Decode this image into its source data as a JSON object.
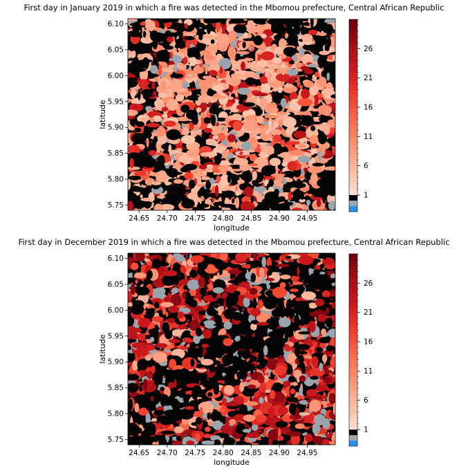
{
  "chart_data": [
    {
      "type": "heatmap",
      "title": "First day in January 2019 in which a fire was detected in the Mbomou prefecture, Central African Republic",
      "xlabel": "longitude",
      "ylabel": "latitude",
      "xticks": [
        24.65,
        24.7,
        24.75,
        24.8,
        24.85,
        24.9,
        24.95
      ],
      "yticks": [
        5.75,
        5.8,
        5.85,
        5.9,
        5.95,
        6.0,
        6.05,
        6.1
      ],
      "xlim": [
        24.63,
        25.0
      ],
      "ylim": [
        5.74,
        6.11
      ],
      "colorbar": {
        "ticks": [
          1,
          6,
          11,
          16,
          21,
          26
        ],
        "range": [
          1,
          31
        ],
        "extra_classes": [
          "#000000",
          "#9aa4ad",
          "#2a8ff0"
        ]
      },
      "colors": {
        "dominant": "#f4a582",
        "background": "#050505",
        "no_data": "#9aa4ad"
      }
    },
    {
      "type": "heatmap",
      "title": "First day in December 2019 in which a fire was detected in the Mbomou prefecture, Central African Republic",
      "xlabel": "longitude",
      "ylabel": "latitude",
      "xticks": [
        24.65,
        24.7,
        24.75,
        24.8,
        24.85,
        24.9,
        24.95
      ],
      "yticks": [
        5.75,
        5.8,
        5.85,
        5.9,
        5.95,
        6.0,
        6.05,
        6.1
      ],
      "xlim": [
        24.63,
        25.0
      ],
      "ylim": [
        5.74,
        6.11
      ],
      "colorbar": {
        "ticks": [
          1,
          6,
          11,
          16,
          21,
          26
        ],
        "range": [
          1,
          31
        ],
        "extra_classes": [
          "#000000",
          "#9aa4ad",
          "#2a8ff0"
        ]
      },
      "colors": {
        "dominant": "#d6301d",
        "background": "#050505",
        "no_data": "#9aa4ad"
      }
    }
  ]
}
